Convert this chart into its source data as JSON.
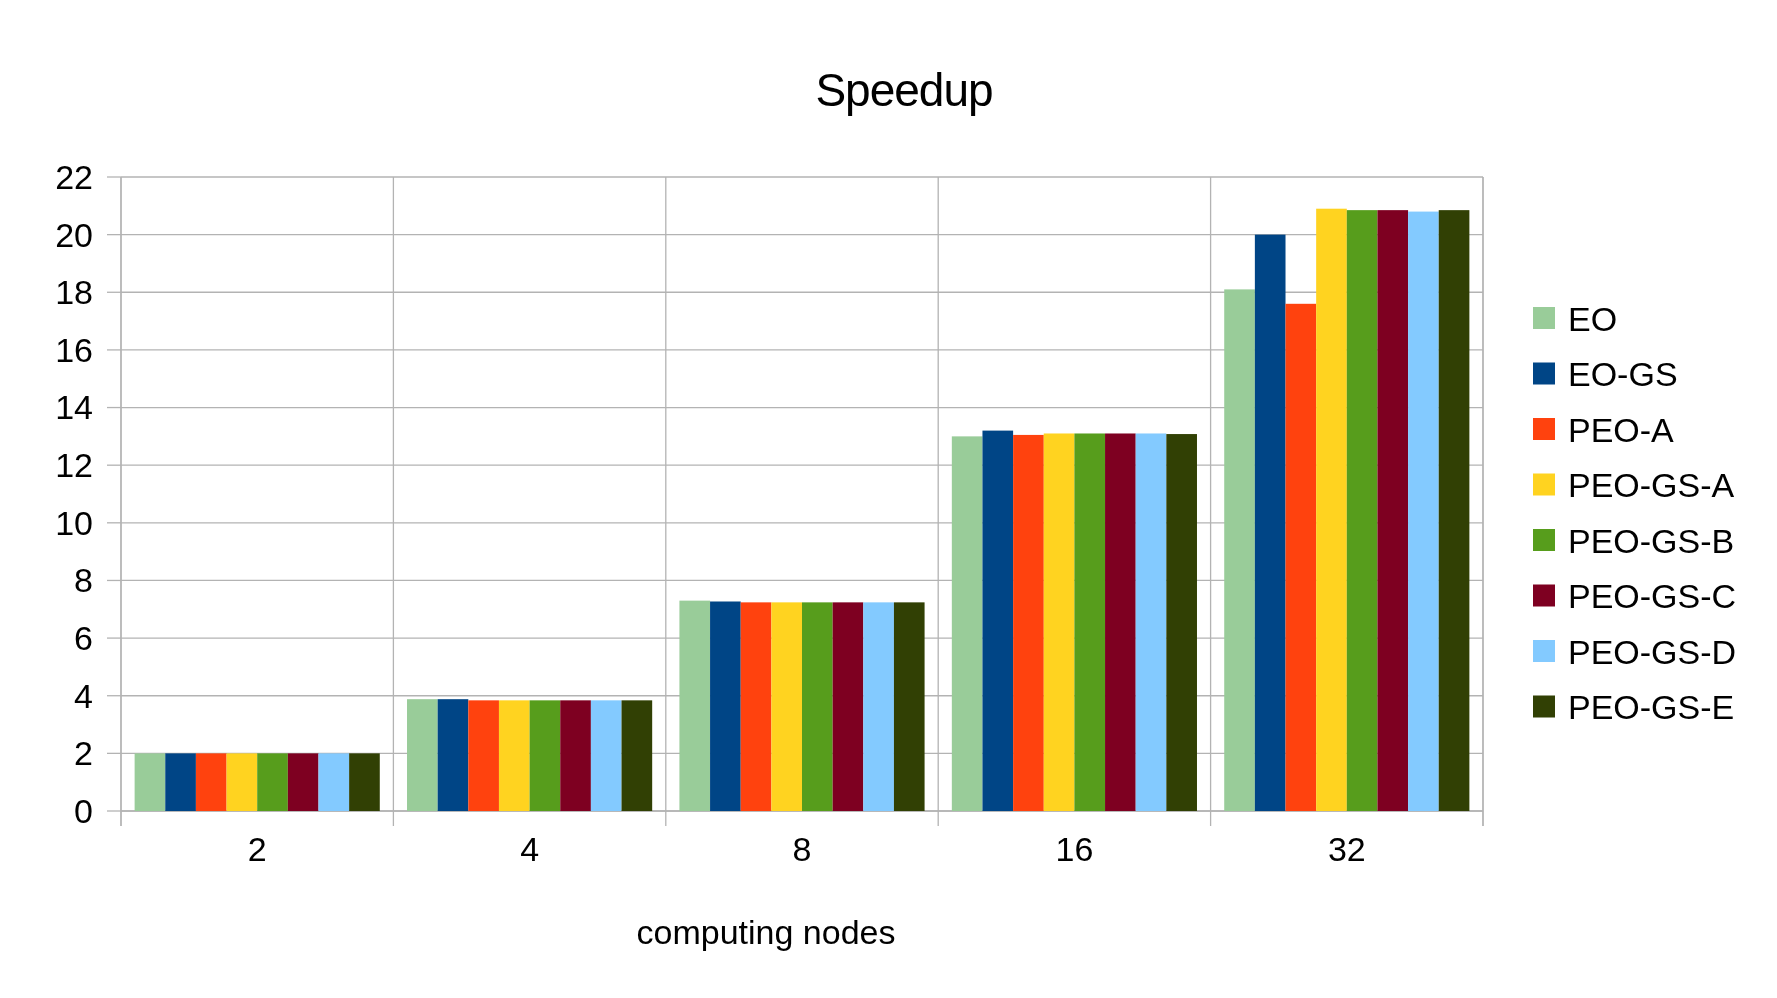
{
  "chart_data": {
    "type": "bar",
    "title": "Speedup",
    "xlabel": "computing nodes",
    "categories": [
      "2",
      "4",
      "8",
      "16",
      "32"
    ],
    "series": [
      {
        "name": "EO",
        "color": "#99cc99",
        "values": [
          2.0,
          3.88,
          7.3,
          13.0,
          18.1
        ]
      },
      {
        "name": "EO-GS",
        "color": "#004586",
        "values": [
          2.0,
          3.88,
          7.27,
          13.2,
          20.0
        ]
      },
      {
        "name": "PEO-A",
        "color": "#ff420e",
        "values": [
          2.0,
          3.84,
          7.24,
          13.05,
          17.6
        ]
      },
      {
        "name": "PEO-GS-A",
        "color": "#ffd320",
        "values": [
          2.0,
          3.84,
          7.24,
          13.1,
          20.9
        ]
      },
      {
        "name": "PEO-GS-B",
        "color": "#579d1c",
        "values": [
          2.0,
          3.84,
          7.24,
          13.1,
          20.85
        ]
      },
      {
        "name": "PEO-GS-C",
        "color": "#7e0021",
        "values": [
          2.0,
          3.84,
          7.24,
          13.1,
          20.85
        ]
      },
      {
        "name": "PEO-GS-D",
        "color": "#83caff",
        "values": [
          2.0,
          3.84,
          7.24,
          13.1,
          20.8
        ]
      },
      {
        "name": "PEO-GS-E",
        "color": "#314004",
        "values": [
          2.0,
          3.84,
          7.24,
          13.08,
          20.85
        ]
      }
    ],
    "ylim": [
      0,
      22
    ],
    "yticks": [
      0,
      2,
      4,
      6,
      8,
      10,
      12,
      14,
      16,
      18,
      20,
      22
    ],
    "grid": true,
    "legend": "right"
  }
}
